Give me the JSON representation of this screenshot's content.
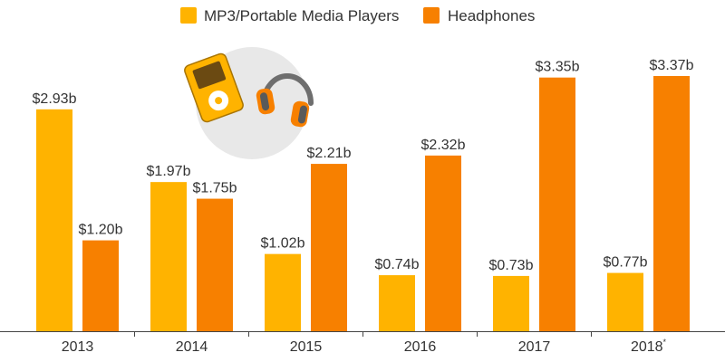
{
  "chart_data": {
    "type": "bar",
    "categories": [
      "2013",
      "2014",
      "2015",
      "2016",
      "2017",
      "2018"
    ],
    "category_suffix": [
      "",
      "",
      "",
      "",
      "",
      "*"
    ],
    "series": [
      {
        "name": "MP3/Portable Media Players",
        "color": "#FFB300",
        "values": [
          2.93,
          1.97,
          1.02,
          0.74,
          0.73,
          0.77
        ],
        "labels": [
          "$2.93b",
          "$1.97b",
          "$1.02b",
          "$0.74b",
          "$0.73b",
          "$0.77b"
        ]
      },
      {
        "name": "Headphones",
        "color": "#F78000",
        "values": [
          1.2,
          1.75,
          2.21,
          2.32,
          3.35,
          3.37
        ],
        "labels": [
          "$1.20b",
          "$1.75b",
          "$2.21b",
          "$2.32b",
          "$3.35b",
          "$3.37b"
        ]
      }
    ],
    "ylim": [
      0,
      3.37
    ],
    "grid": false,
    "legend_position": "top-center",
    "illustration": [
      "mp3-player-icon",
      "headphones-icon"
    ]
  }
}
